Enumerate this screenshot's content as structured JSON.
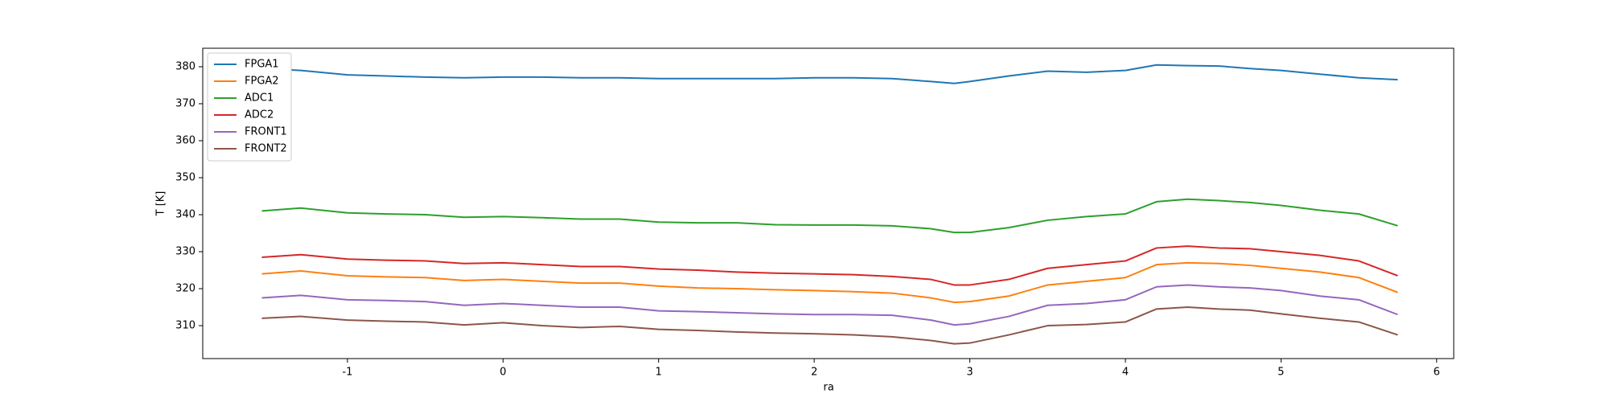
{
  "chart_data": {
    "type": "line",
    "xlabel": "ra",
    "ylabel": "T [K]",
    "x": [
      -1.55,
      -1.3,
      -1.0,
      -0.75,
      -0.5,
      -0.25,
      0,
      0.25,
      0.5,
      0.75,
      1.0,
      1.25,
      1.5,
      1.75,
      2.0,
      2.25,
      2.5,
      2.75,
      2.9,
      3.0,
      3.25,
      3.5,
      3.75,
      4.0,
      4.2,
      4.4,
      4.6,
      4.8,
      5.0,
      5.25,
      5.5,
      5.75
    ],
    "series": [
      {
        "name": "FPGA1",
        "color": "#1f77b4",
        "values": [
          379.5,
          379,
          377.8,
          377.5,
          377.2,
          377,
          377.2,
          377.2,
          377,
          377,
          376.8,
          376.8,
          376.8,
          376.8,
          377,
          377,
          376.8,
          376,
          375.5,
          376,
          377.5,
          378.8,
          378.5,
          379,
          380.5,
          380.3,
          380.2,
          379.5,
          379,
          378,
          377,
          376.5
        ]
      },
      {
        "name": "FPGA2",
        "color": "#ff7f0e",
        "values": [
          324,
          324.8,
          323.5,
          323.2,
          323,
          322.2,
          322.5,
          322,
          321.5,
          321.5,
          320.7,
          320.2,
          320,
          319.7,
          319.5,
          319.2,
          318.8,
          317.5,
          316.3,
          316.5,
          318,
          321,
          322,
          323,
          326.5,
          327,
          326.8,
          326.3,
          325.5,
          324.5,
          323,
          319
        ]
      },
      {
        "name": "ADC1",
        "color": "#2ca02c",
        "values": [
          341,
          341.8,
          340.5,
          340.2,
          340,
          339.3,
          339.5,
          339.2,
          338.8,
          338.8,
          338,
          337.8,
          337.8,
          337.3,
          337.2,
          337.2,
          337,
          336.2,
          335.2,
          335.2,
          336.5,
          338.5,
          339.5,
          340.2,
          343.5,
          344.2,
          343.8,
          343.3,
          342.5,
          341.2,
          340.2,
          337
        ]
      },
      {
        "name": "ADC2",
        "color": "#d62728",
        "values": [
          328.5,
          329.2,
          328,
          327.7,
          327.5,
          326.8,
          327,
          326.5,
          326,
          326,
          325.3,
          325,
          324.5,
          324.2,
          324,
          323.8,
          323.3,
          322.5,
          321,
          321,
          322.5,
          325.5,
          326.5,
          327.5,
          331,
          331.5,
          331,
          330.8,
          330,
          329,
          327.5,
          323.5
        ]
      },
      {
        "name": "FRONT1",
        "color": "#9467bd",
        "values": [
          317.5,
          318.2,
          317,
          316.8,
          316.5,
          315.5,
          316,
          315.5,
          315,
          315,
          314,
          313.8,
          313.5,
          313.2,
          313,
          313,
          312.8,
          311.5,
          310.2,
          310.5,
          312.5,
          315.5,
          316,
          317,
          320.5,
          321,
          320.5,
          320.2,
          319.5,
          318,
          317,
          313
        ]
      },
      {
        "name": "FRONT2",
        "color": "#8c564b",
        "values": [
          312,
          312.5,
          311.5,
          311.2,
          311,
          310.2,
          310.8,
          310,
          309.5,
          309.8,
          309,
          308.7,
          308.3,
          308,
          307.8,
          307.5,
          307,
          306,
          305.1,
          305.3,
          307.5,
          310,
          310.3,
          311,
          314.5,
          315,
          314.5,
          314.2,
          313.2,
          312,
          311,
          307.5
        ]
      }
    ],
    "xlim": [
      -1.93,
      6.11
    ],
    "ylim": [
      301.1,
      385.0
    ],
    "xticks": [
      -1,
      0,
      1,
      2,
      3,
      4,
      5,
      6
    ],
    "yticks": [
      310,
      320,
      330,
      340,
      350,
      360,
      370,
      380
    ],
    "legend": "upper left"
  }
}
